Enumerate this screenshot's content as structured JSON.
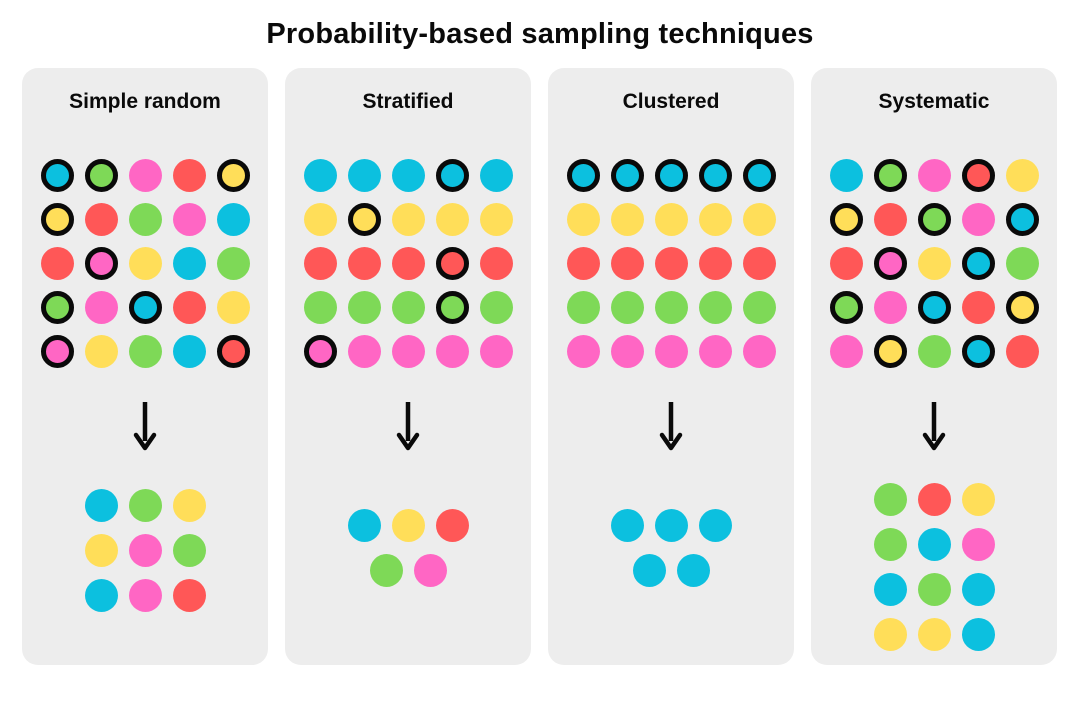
{
  "title": "Probability-based sampling techniques",
  "colors": {
    "cyan": "#0CC0DF",
    "green": "#7ED957",
    "pink": "#FF66C4",
    "red": "#FF5757",
    "yellow": "#FFDE59",
    "ring": "#0A0A0A",
    "arrow": "#0A0A0A",
    "panel_bg": "#EDEDED",
    "page_bg": "#FFFFFF"
  },
  "panels": [
    {
      "name": "Simple random",
      "population": [
        [
          {
            "color": "cyan",
            "ring": true
          },
          {
            "color": "green",
            "ring": true
          },
          {
            "color": "pink",
            "ring": false
          },
          {
            "color": "red",
            "ring": false
          },
          {
            "color": "yellow",
            "ring": true
          }
        ],
        [
          {
            "color": "yellow",
            "ring": true
          },
          {
            "color": "red",
            "ring": false
          },
          {
            "color": "green",
            "ring": false
          },
          {
            "color": "pink",
            "ring": false
          },
          {
            "color": "cyan",
            "ring": false
          }
        ],
        [
          {
            "color": "red",
            "ring": false
          },
          {
            "color": "pink",
            "ring": true
          },
          {
            "color": "yellow",
            "ring": false
          },
          {
            "color": "cyan",
            "ring": false
          },
          {
            "color": "green",
            "ring": false
          }
        ],
        [
          {
            "color": "green",
            "ring": true
          },
          {
            "color": "pink",
            "ring": false
          },
          {
            "color": "cyan",
            "ring": true
          },
          {
            "color": "red",
            "ring": false
          },
          {
            "color": "yellow",
            "ring": false
          }
        ],
        [
          {
            "color": "pink",
            "ring": true
          },
          {
            "color": "yellow",
            "ring": false
          },
          {
            "color": "green",
            "ring": false
          },
          {
            "color": "cyan",
            "ring": false
          },
          {
            "color": "red",
            "ring": true
          }
        ]
      ],
      "sample_rows": [
        [
          "cyan",
          "green",
          "yellow"
        ],
        [
          "yellow",
          "pink",
          "green"
        ],
        [
          "cyan",
          "pink",
          "red"
        ]
      ]
    },
    {
      "name": "Stratified",
      "population": [
        [
          {
            "color": "cyan",
            "ring": false
          },
          {
            "color": "cyan",
            "ring": false
          },
          {
            "color": "cyan",
            "ring": false
          },
          {
            "color": "cyan",
            "ring": true
          },
          {
            "color": "cyan",
            "ring": false
          }
        ],
        [
          {
            "color": "yellow",
            "ring": false
          },
          {
            "color": "yellow",
            "ring": true
          },
          {
            "color": "yellow",
            "ring": false
          },
          {
            "color": "yellow",
            "ring": false
          },
          {
            "color": "yellow",
            "ring": false
          }
        ],
        [
          {
            "color": "red",
            "ring": false
          },
          {
            "color": "red",
            "ring": false
          },
          {
            "color": "red",
            "ring": false
          },
          {
            "color": "red",
            "ring": true
          },
          {
            "color": "red",
            "ring": false
          }
        ],
        [
          {
            "color": "green",
            "ring": false
          },
          {
            "color": "green",
            "ring": false
          },
          {
            "color": "green",
            "ring": false
          },
          {
            "color": "green",
            "ring": true
          },
          {
            "color": "green",
            "ring": false
          }
        ],
        [
          {
            "color": "pink",
            "ring": true
          },
          {
            "color": "pink",
            "ring": false
          },
          {
            "color": "pink",
            "ring": false
          },
          {
            "color": "pink",
            "ring": false
          },
          {
            "color": "pink",
            "ring": false
          }
        ]
      ],
      "sample_rows": [
        [
          "cyan",
          "yellow",
          "red"
        ],
        [
          "green",
          "pink"
        ]
      ]
    },
    {
      "name": "Clustered",
      "population": [
        [
          {
            "color": "cyan",
            "ring": true
          },
          {
            "color": "cyan",
            "ring": true
          },
          {
            "color": "cyan",
            "ring": true
          },
          {
            "color": "cyan",
            "ring": true
          },
          {
            "color": "cyan",
            "ring": true
          }
        ],
        [
          {
            "color": "yellow",
            "ring": false
          },
          {
            "color": "yellow",
            "ring": false
          },
          {
            "color": "yellow",
            "ring": false
          },
          {
            "color": "yellow",
            "ring": false
          },
          {
            "color": "yellow",
            "ring": false
          }
        ],
        [
          {
            "color": "red",
            "ring": false
          },
          {
            "color": "red",
            "ring": false
          },
          {
            "color": "red",
            "ring": false
          },
          {
            "color": "red",
            "ring": false
          },
          {
            "color": "red",
            "ring": false
          }
        ],
        [
          {
            "color": "green",
            "ring": false
          },
          {
            "color": "green",
            "ring": false
          },
          {
            "color": "green",
            "ring": false
          },
          {
            "color": "green",
            "ring": false
          },
          {
            "color": "green",
            "ring": false
          }
        ],
        [
          {
            "color": "pink",
            "ring": false
          },
          {
            "color": "pink",
            "ring": false
          },
          {
            "color": "pink",
            "ring": false
          },
          {
            "color": "pink",
            "ring": false
          },
          {
            "color": "pink",
            "ring": false
          }
        ]
      ],
      "sample_rows": [
        [
          "cyan",
          "cyan",
          "cyan"
        ],
        [
          "cyan",
          "cyan"
        ]
      ]
    },
    {
      "name": "Systematic",
      "population": [
        [
          {
            "color": "cyan",
            "ring": false
          },
          {
            "color": "green",
            "ring": true
          },
          {
            "color": "pink",
            "ring": false
          },
          {
            "color": "red",
            "ring": true
          },
          {
            "color": "yellow",
            "ring": false
          }
        ],
        [
          {
            "color": "yellow",
            "ring": true
          },
          {
            "color": "red",
            "ring": false
          },
          {
            "color": "green",
            "ring": true
          },
          {
            "color": "pink",
            "ring": false
          },
          {
            "color": "cyan",
            "ring": true
          }
        ],
        [
          {
            "color": "red",
            "ring": false
          },
          {
            "color": "pink",
            "ring": true
          },
          {
            "color": "yellow",
            "ring": false
          },
          {
            "color": "cyan",
            "ring": true
          },
          {
            "color": "green",
            "ring": false
          }
        ],
        [
          {
            "color": "green",
            "ring": true
          },
          {
            "color": "pink",
            "ring": false
          },
          {
            "color": "cyan",
            "ring": true
          },
          {
            "color": "red",
            "ring": false
          },
          {
            "color": "yellow",
            "ring": true
          }
        ],
        [
          {
            "color": "pink",
            "ring": false
          },
          {
            "color": "yellow",
            "ring": true
          },
          {
            "color": "green",
            "ring": false
          },
          {
            "color": "cyan",
            "ring": true
          },
          {
            "color": "red",
            "ring": false
          }
        ]
      ],
      "sample_rows": [
        [
          "green",
          "red",
          "yellow"
        ],
        [
          "green",
          "cyan",
          "pink"
        ],
        [
          "cyan",
          "green",
          "cyan"
        ],
        [
          "yellow",
          "yellow",
          "cyan"
        ]
      ]
    }
  ]
}
